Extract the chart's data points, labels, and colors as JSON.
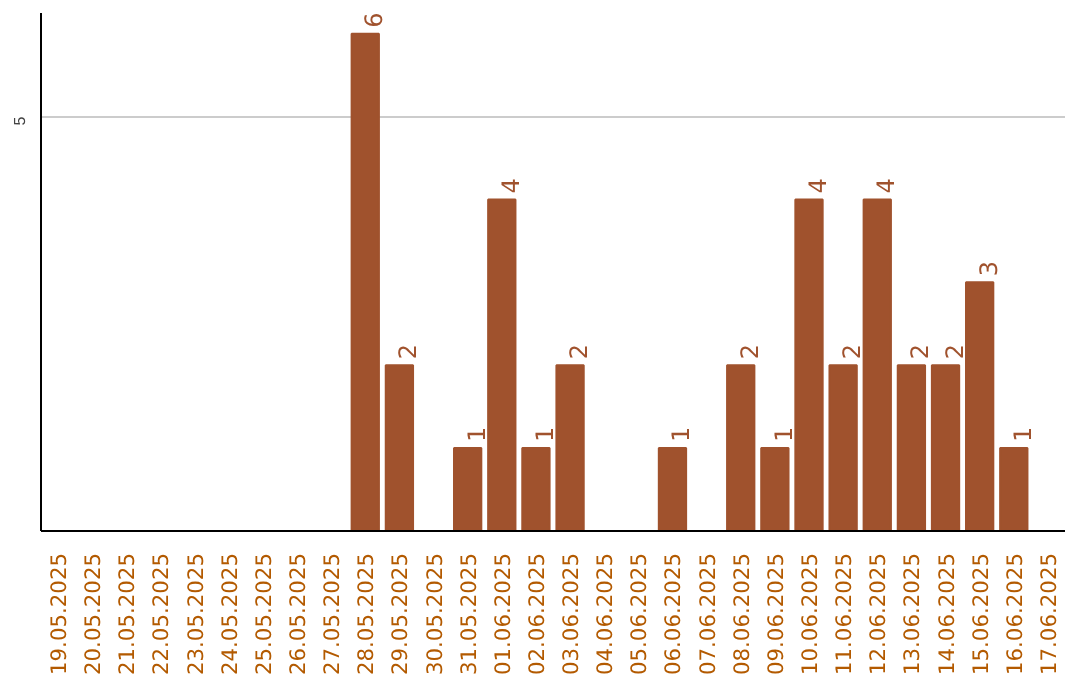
{
  "chart_data": {
    "type": "bar",
    "categories": [
      "19.05.2025",
      "20.05.2025",
      "21.05.2025",
      "22.05.2025",
      "23.05.2025",
      "24.05.2025",
      "25.05.2025",
      "26.05.2025",
      "27.05.2025",
      "28.05.2025",
      "29.05.2025",
      "30.05.2025",
      "31.05.2025",
      "01.06.2025",
      "02.06.2025",
      "03.06.2025",
      "04.06.2025",
      "05.06.2025",
      "06.06.2025",
      "07.06.2025",
      "08.06.2025",
      "09.06.2025",
      "10.06.2025",
      "11.06.2025",
      "12.06.2025",
      "13.06.2025",
      "14.06.2025",
      "15.06.2025",
      "16.06.2025",
      "17.06.2025"
    ],
    "values": [
      0,
      0,
      0,
      0,
      0,
      0,
      0,
      0,
      0,
      6,
      2,
      0,
      1,
      4,
      1,
      2,
      0,
      0,
      1,
      0,
      2,
      1,
      4,
      2,
      4,
      2,
      2,
      3,
      1,
      0
    ],
    "value_labels": [
      null,
      null,
      null,
      null,
      null,
      null,
      null,
      null,
      null,
      "6",
      "2",
      null,
      "1",
      "4",
      "1",
      "2",
      null,
      null,
      "1",
      null,
      "2",
      "1",
      "4",
      "2",
      "4",
      "2",
      "2",
      "3",
      "1",
      null
    ],
    "color": "#a0522d",
    "ylim": [
      0,
      6.25
    ],
    "yticks": [
      5
    ],
    "grid": "y"
  }
}
